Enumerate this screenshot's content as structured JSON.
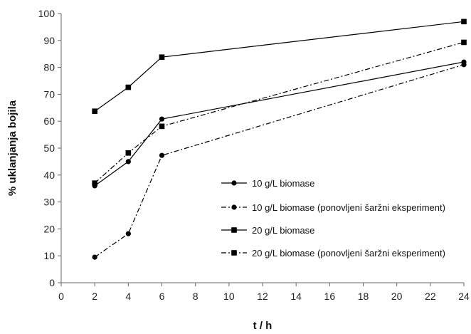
{
  "chart_data": {
    "type": "line",
    "title": "",
    "xlabel": "t / h",
    "ylabel": "% uklanjanja bojila",
    "xlim": [
      0,
      24
    ],
    "ylim": [
      0,
      100
    ],
    "x_ticks": [
      0,
      2,
      4,
      6,
      8,
      10,
      12,
      14,
      16,
      18,
      20,
      22,
      24
    ],
    "y_ticks": [
      0,
      10,
      20,
      30,
      40,
      50,
      60,
      70,
      80,
      90,
      100
    ],
    "grid": false,
    "legend_position": "lower-right",
    "series": [
      {
        "name": "10 g/L biomase",
        "marker": "circle",
        "line_style": "solid",
        "x": [
          2,
          4,
          6,
          24
        ],
        "y": [
          36,
          45,
          60.8,
          82
        ]
      },
      {
        "name": "10 g/L biomase (ponovljeni šaržni eksperiment)",
        "marker": "circle",
        "line_style": "dash-dot",
        "x": [
          2,
          4,
          6,
          24
        ],
        "y": [
          9.5,
          18.2,
          47.3,
          81
        ]
      },
      {
        "name": "20 g/L biomase",
        "marker": "square",
        "line_style": "solid",
        "x": [
          2,
          4,
          6,
          24
        ],
        "y": [
          63.7,
          72.6,
          83.8,
          97
        ]
      },
      {
        "name": "20 g/L biomase (ponovljeni šaržni eksperiment)",
        "marker": "square",
        "line_style": "dash-dot",
        "x": [
          2,
          4,
          6,
          24
        ],
        "y": [
          37,
          48.2,
          58.1,
          89.3
        ]
      }
    ],
    "colors": {
      "line": "#000000",
      "axis": "#666666"
    }
  }
}
